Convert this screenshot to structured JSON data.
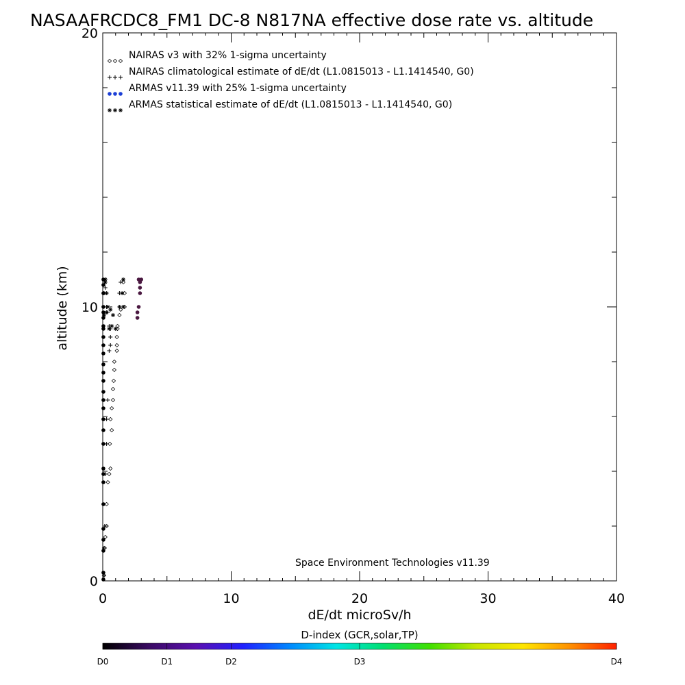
{
  "chart_data": {
    "type": "scatter",
    "title": "NASAAFRCDC8_FM1 DC-8   N817NA effective dose rate vs. altitude",
    "xlabel": "dE/dt microSv/h",
    "ylabel": "altitude (km)",
    "xlim": [
      0,
      40
    ],
    "ylim": [
      0,
      20
    ],
    "x_ticks": [
      "0",
      "10",
      "20",
      "30",
      "40"
    ],
    "y_ticks": [
      "0",
      "10",
      "20"
    ],
    "legend_position": "top-left",
    "legend": [
      {
        "label": "NAIRAS v3 with 32% 1-sigma uncertainty",
        "symbol": "diamond",
        "color": "#000000"
      },
      {
        "label": "NAIRAS climatological estimate of dE/dt (L1.0815013 - L1.1414540, G0)",
        "symbol": "plus",
        "color": "#000000"
      },
      {
        "label": "ARMAS v11.39 with 25% 1-sigma uncertainty",
        "symbol": "dot",
        "color": "#1c3fd6"
      },
      {
        "label": "ARMAS statistical estimate of dE/dt (L1.0815013 - L1.1414540, G0)",
        "symbol": "asterisk",
        "color": "#000000"
      }
    ],
    "series": [
      {
        "name": "NAIRAS v3 with 32% 1-sigma uncertainty",
        "points": [
          [
            0.1,
            0.2
          ],
          [
            0.15,
            1.2
          ],
          [
            0.2,
            1.6
          ],
          [
            0.3,
            2.0
          ],
          [
            0.3,
            2.8
          ],
          [
            0.4,
            3.6
          ],
          [
            0.5,
            3.9
          ],
          [
            0.6,
            4.1
          ],
          [
            0.55,
            5.0
          ],
          [
            0.7,
            5.5
          ],
          [
            0.6,
            5.9
          ],
          [
            0.7,
            6.3
          ],
          [
            0.8,
            6.6
          ],
          [
            0.8,
            7.0
          ],
          [
            0.85,
            7.3
          ],
          [
            0.9,
            7.7
          ],
          [
            0.9,
            8.0
          ],
          [
            1.1,
            8.4
          ],
          [
            1.1,
            8.6
          ],
          [
            1.1,
            8.9
          ],
          [
            1.15,
            9.2
          ],
          [
            1.15,
            9.3
          ],
          [
            1.3,
            9.7
          ],
          [
            1.4,
            9.9
          ],
          [
            1.7,
            10.0
          ],
          [
            1.7,
            10.5
          ],
          [
            1.6,
            10.9
          ]
        ]
      },
      {
        "name": "NAIRAS climatological estimate of dE/dt (L1.0815013 - L1.1414540, G0)",
        "points": [
          [
            0.1,
            0.2
          ],
          [
            0.1,
            1.2
          ],
          [
            0.15,
            2.0
          ],
          [
            0.2,
            3.9
          ],
          [
            0.3,
            5.0
          ],
          [
            0.3,
            5.9
          ],
          [
            0.4,
            6.6
          ],
          [
            0.5,
            8.4
          ],
          [
            0.6,
            8.6
          ],
          [
            0.6,
            8.9
          ],
          [
            0.6,
            9.2
          ],
          [
            0.5,
            9.3
          ],
          [
            0.4,
            9.8
          ],
          [
            0.3,
            10.0
          ],
          [
            0.1,
            10.5
          ],
          [
            0.2,
            10.7
          ],
          [
            0.15,
            10.9
          ],
          [
            0.2,
            11.0
          ],
          [
            1.3,
            10.5
          ],
          [
            1.4,
            10.9
          ],
          [
            1.6,
            11.0
          ]
        ]
      },
      {
        "name": "ARMAS v11.39 with 25% 1-sigma uncertainty",
        "points": [
          [
            0.05,
            0.05
          ],
          [
            0.05,
            0.3
          ],
          [
            0.05,
            1.1
          ],
          [
            0.05,
            1.5
          ],
          [
            0.05,
            1.9
          ],
          [
            0.05,
            2.8
          ],
          [
            0.05,
            3.6
          ],
          [
            0.05,
            3.9
          ],
          [
            0.05,
            4.1
          ],
          [
            0.05,
            5.0
          ],
          [
            0.05,
            5.5
          ],
          [
            0.05,
            5.9
          ],
          [
            0.05,
            6.3
          ],
          [
            0.05,
            6.6
          ],
          [
            0.05,
            6.9
          ],
          [
            0.05,
            7.3
          ],
          [
            0.05,
            7.6
          ],
          [
            0.05,
            7.9
          ],
          [
            0.05,
            8.3
          ],
          [
            0.05,
            8.6
          ],
          [
            0.05,
            8.9
          ],
          [
            0.05,
            9.2
          ],
          [
            0.05,
            9.3
          ],
          [
            0.05,
            9.6
          ],
          [
            0.05,
            9.8
          ],
          [
            0.05,
            10.0
          ],
          [
            0.05,
            10.5
          ],
          [
            0.05,
            10.8
          ],
          [
            0.05,
            11.0
          ],
          [
            2.7,
            9.6
          ],
          [
            2.7,
            9.8
          ],
          [
            2.8,
            10.0
          ],
          [
            2.9,
            10.5
          ],
          [
            2.9,
            10.7
          ],
          [
            2.9,
            10.9
          ],
          [
            3.0,
            11.0
          ],
          [
            2.8,
            11.0
          ]
        ]
      },
      {
        "name": "ARMAS statistical estimate of dE/dt (L1.0815013 - L1.1414540, G0)",
        "points": [
          [
            0.1,
            9.7
          ],
          [
            0.3,
            9.8
          ],
          [
            0.4,
            10.0
          ],
          [
            0.6,
            9.9
          ],
          [
            0.8,
            9.7
          ],
          [
            0.5,
            9.2
          ],
          [
            0.7,
            9.3
          ],
          [
            1.0,
            9.2
          ],
          [
            0.3,
            10.5
          ],
          [
            0.2,
            10.9
          ],
          [
            0.2,
            11.0
          ],
          [
            1.3,
            10.0
          ],
          [
            1.5,
            10.5
          ],
          [
            1.6,
            10.0
          ],
          [
            1.6,
            11.0
          ]
        ]
      }
    ],
    "annotation": "Space Environment Technologies v11.39",
    "colorbar": {
      "title": "D-index (GCR,solar,TP)",
      "labels": [
        "D0",
        "D1",
        "D2",
        "D3",
        "D4"
      ],
      "label_values": [
        0,
        0.125,
        0.25,
        0.5,
        1.0
      ],
      "colors": [
        "#000000",
        "#3a0a63",
        "#5a0fb0",
        "#2020ff",
        "#0088ff",
        "#00e5e5",
        "#00e070",
        "#40e000",
        "#c8e600",
        "#ffe600",
        "#ff9000",
        "#ff2000"
      ]
    }
  }
}
